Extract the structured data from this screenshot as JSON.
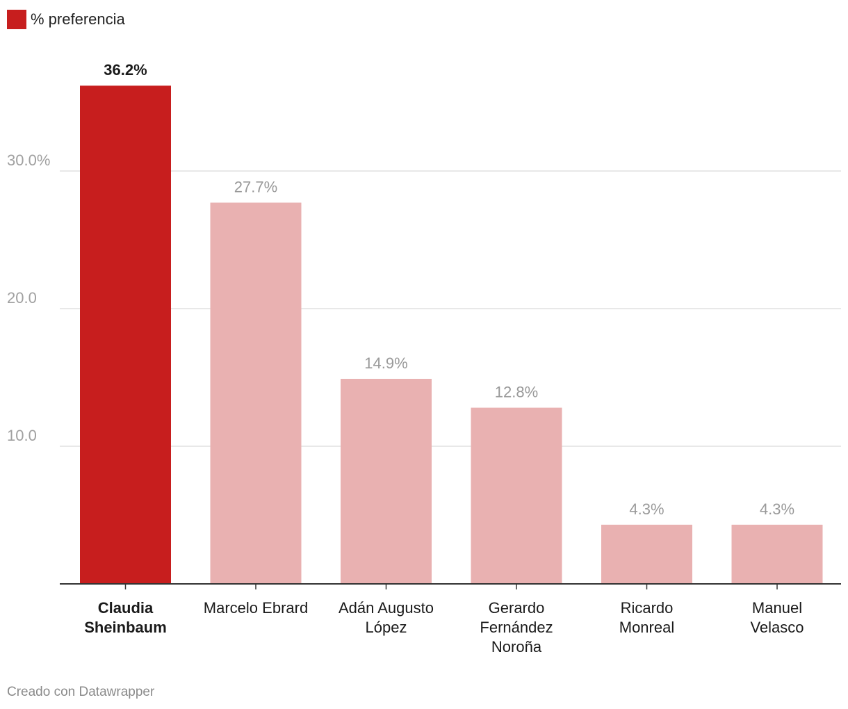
{
  "legend": {
    "label": "% preferencia",
    "color": "#c71e1e"
  },
  "footer": "Creado con Datawrapper",
  "chart_data": {
    "type": "bar",
    "title": "",
    "xlabel": "",
    "ylabel": "",
    "ylim": [
      0,
      36.2
    ],
    "yticks": [
      10,
      20,
      30
    ],
    "ytick_labels": [
      "10.0",
      "20.0",
      "30.0%"
    ],
    "grid": true,
    "legend_position": "top-left",
    "categories": [
      [
        "Claudia",
        "Sheinbaum"
      ],
      [
        "Marcelo Ebrard"
      ],
      [
        "Adán Augusto",
        "López"
      ],
      [
        "Gerardo",
        "Fernández",
        "Noroña"
      ],
      [
        "Ricardo",
        "Monreal"
      ],
      [
        "Manuel",
        "Velasco"
      ]
    ],
    "values": [
      36.2,
      27.7,
      14.9,
      12.8,
      4.3,
      4.3
    ],
    "value_labels": [
      "36.2%",
      "27.7%",
      "14.9%",
      "12.8%",
      "4.3%",
      "4.3%"
    ],
    "highlight_index": 0,
    "series": [
      {
        "name": "% preferencia",
        "values": [
          36.2,
          27.7,
          14.9,
          12.8,
          4.3,
          4.3
        ]
      }
    ],
    "colors": {
      "highlight": "#c71e1e",
      "muted": "#e9b1b1",
      "grid": "#e1e1e1",
      "axis": "#333333",
      "tick_text": "#a0a0a0",
      "label_muted": "#999999",
      "label_highlight": "#1a1a1a"
    }
  }
}
